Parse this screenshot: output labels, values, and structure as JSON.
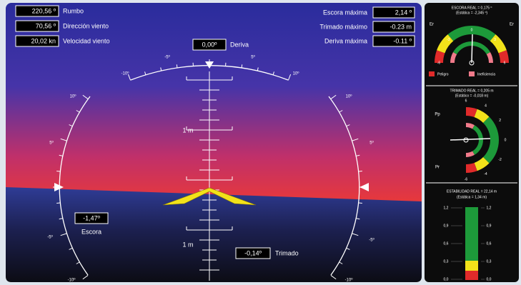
{
  "readouts_left": [
    {
      "value": "220,56 º",
      "label": "Rumbo"
    },
    {
      "value": "70,56 º",
      "label": "Dirección viento"
    },
    {
      "value": "20,02 kn",
      "label": "Velocidad viento"
    }
  ],
  "readouts_right": [
    {
      "label": "Escora máxima",
      "value": "2,14 º"
    },
    {
      "label": "Trimado máximo",
      "value": "-0.23 m"
    },
    {
      "label": "Deriva máxima",
      "value": "-0.11 º"
    }
  ],
  "deriva": {
    "value": "0,00º",
    "label": "Deriva"
  },
  "escora": {
    "value": "-1,47º",
    "label": "Escora"
  },
  "trimado": {
    "value": "-0,14º",
    "label": "Trimado"
  },
  "top_scale": [
    "-10º",
    "-5º",
    "5º",
    "10º"
  ],
  "left_scale": [
    "10º",
    "5º",
    "-5º",
    "-10º"
  ],
  "right_scale": [
    "10º",
    "5º",
    "-5º",
    "-10º"
  ],
  "ladder_labels": [
    "1 m",
    "1 m"
  ],
  "panel": {
    "escora": {
      "title": "ESCORA REAL = 0,175 º",
      "subtitle": "(Estática = -2,345 º)",
      "left": "Er",
      "right": "Er",
      "ticks": [
        "-6",
        "-3",
        "0",
        "3",
        "6"
      ],
      "legend": [
        "Peligro",
        "Ineficiencia"
      ]
    },
    "trimado": {
      "title": "TRIMADO REAL = 0,205 m",
      "subtitle": "(Estático = -0,018 m)",
      "top": "Pp",
      "bottom": "Pr",
      "ticks": [
        "6",
        "4",
        "2",
        "0",
        "-2",
        "-4",
        "-6"
      ]
    },
    "estabilidad": {
      "title": "ESTABILIDAD REAL = 22,14 m",
      "subtitle": "(Estática = 1,34 m)",
      "ticks": [
        "1,2",
        "0,9",
        "0,6",
        "0,3",
        "0,0"
      ]
    }
  }
}
